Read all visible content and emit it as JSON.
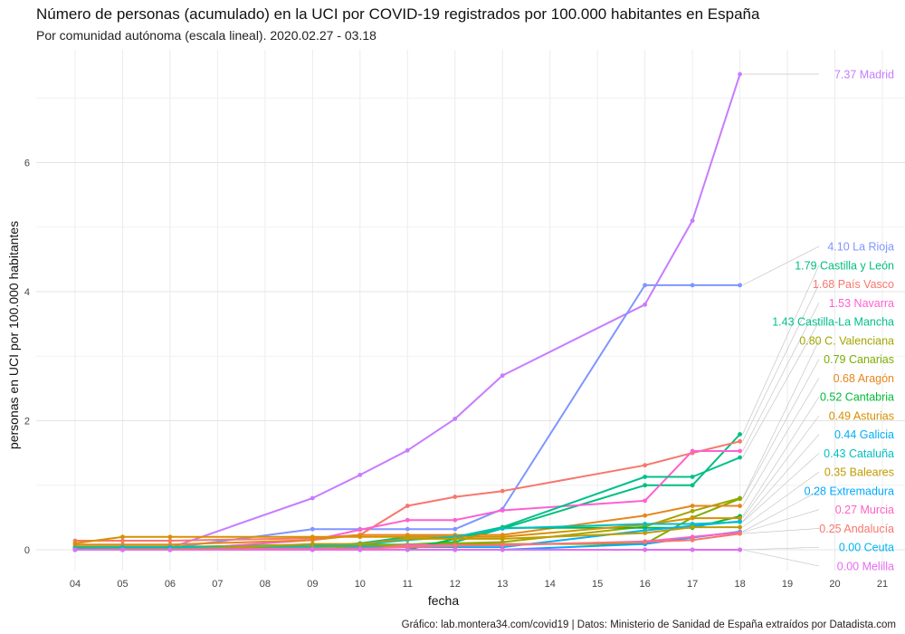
{
  "chart_data": {
    "type": "line",
    "title": "Número de personas (acumulado) en la UCI por COVID-19 registrados por 100.000 habitantes en España",
    "subtitle": "Por comunidad autónoma (escala lineal). 2020.02.27 - 03.18",
    "caption": "Gráfico: lab.montera34.com/covid19 | Datos: Ministerio de Sanidad de España extraídos por Datadista.com",
    "xlabel": "fecha",
    "ylabel": "personas en UCI por 100.000 habitantes",
    "x_ticks": [
      "04",
      "05",
      "06",
      "07",
      "08",
      "09",
      "10",
      "11",
      "12",
      "13",
      "14",
      "15",
      "16",
      "17",
      "18",
      "19",
      "20",
      "21"
    ],
    "xlim": [
      4,
      21
    ],
    "y_ticks": [
      0,
      2,
      4,
      6
    ],
    "ylim": [
      -0.1,
      7.6
    ],
    "grid": true,
    "legend": "direct labels",
    "series": [
      {
        "name": "Madrid",
        "label": "7.37 Madrid",
        "color": "#c77cff",
        "x": [
          4,
          5,
          6,
          9,
          10,
          11,
          12,
          13,
          16,
          17,
          18
        ],
        "y": [
          0.0,
          0.02,
          0.03,
          0.8,
          1.16,
          1.54,
          2.03,
          2.7,
          3.8,
          5.1,
          7.37
        ]
      },
      {
        "name": "La Rioja",
        "label": "4.10 La Rioja",
        "color": "#7f96ff",
        "x": [
          4,
          5,
          6,
          9,
          10,
          11,
          12,
          13,
          16,
          17,
          18
        ],
        "y": [
          0.03,
          0.03,
          0.03,
          0.32,
          0.32,
          0.32,
          0.32,
          0.63,
          4.1,
          4.1,
          4.1
        ]
      },
      {
        "name": "Castilla y León",
        "label": "1.79 Castilla y León",
        "color": "#00bf7d",
        "x": [
          4,
          5,
          6,
          9,
          10,
          11,
          12,
          13,
          16,
          17,
          18
        ],
        "y": [
          0.04,
          0.04,
          0.04,
          0.08,
          0.08,
          0.08,
          0.12,
          0.33,
          1.0,
          1.0,
          1.79
        ]
      },
      {
        "name": "País Vasco",
        "label": "1.68 País Vasco",
        "color": "#f8766d",
        "x": [
          4,
          5,
          6,
          9,
          10,
          11,
          12,
          13,
          16,
          17,
          18
        ],
        "y": [
          0.14,
          0.14,
          0.14,
          0.18,
          0.23,
          0.68,
          0.82,
          0.91,
          1.31,
          1.5,
          1.68
        ]
      },
      {
        "name": "Navarra",
        "label": "1.53 Navarra",
        "color": "#fd61d1",
        "x": [
          4,
          5,
          6,
          9,
          10,
          11,
          12,
          13,
          16,
          17,
          18
        ],
        "y": [
          0.0,
          0.0,
          0.0,
          0.15,
          0.31,
          0.46,
          0.46,
          0.61,
          0.76,
          1.53,
          1.53
        ]
      },
      {
        "name": "Castilla-La Mancha",
        "label": "1.43 Castilla-La Mancha",
        "color": "#00c08b",
        "x": [
          4,
          5,
          6,
          9,
          10,
          11,
          12,
          13,
          16,
          17,
          18
        ],
        "y": [
          0.0,
          0.0,
          0.0,
          0.05,
          0.1,
          0.2,
          0.2,
          0.35,
          1.13,
          1.13,
          1.43
        ]
      },
      {
        "name": "C. Valenciana",
        "label": "0.80 C. Valenciana",
        "color": "#a3a500",
        "x": [
          4,
          5,
          6,
          9,
          10,
          11,
          12,
          13,
          16,
          17,
          18
        ],
        "y": [
          0.02,
          0.02,
          0.02,
          0.04,
          0.06,
          0.08,
          0.1,
          0.12,
          0.36,
          0.6,
          0.8
        ]
      },
      {
        "name": "Canarias",
        "label": "0.79 Canarias",
        "color": "#7cae00",
        "x": [
          4,
          5,
          6,
          9,
          10,
          11,
          12,
          13,
          16,
          17,
          18
        ],
        "y": [
          0.05,
          0.05,
          0.05,
          0.05,
          0.05,
          0.05,
          0.09,
          0.09,
          0.09,
          0.5,
          0.79
        ]
      },
      {
        "name": "Aragón",
        "label": "0.68 Aragón",
        "color": "#e7861b",
        "x": [
          4,
          5,
          6,
          9,
          10,
          11,
          12,
          13,
          16,
          17,
          18
        ],
        "y": [
          0.08,
          0.08,
          0.08,
          0.15,
          0.23,
          0.23,
          0.23,
          0.23,
          0.53,
          0.68,
          0.68
        ]
      },
      {
        "name": "Cantabria",
        "label": "0.52 Cantabria",
        "color": "#00ba38",
        "x": [
          4,
          5,
          6,
          9,
          10,
          11,
          12,
          13,
          16,
          17,
          18
        ],
        "y": [
          0.0,
          0.0,
          0.0,
          0.0,
          0.0,
          0.0,
          0.17,
          0.34,
          0.34,
          0.34,
          0.52
        ]
      },
      {
        "name": "Asturias",
        "label": "0.49 Asturias",
        "color": "#d89000",
        "x": [
          4,
          5,
          6,
          9,
          10,
          11,
          12,
          13,
          16,
          17,
          18
        ],
        "y": [
          0.1,
          0.2,
          0.2,
          0.2,
          0.2,
          0.2,
          0.2,
          0.2,
          0.39,
          0.49,
          0.49
        ]
      },
      {
        "name": "Galicia",
        "label": "0.44 Galicia",
        "color": "#00b0f6",
        "x": [
          4,
          5,
          6,
          9,
          10,
          11,
          12,
          13,
          16,
          17,
          18
        ],
        "y": [
          0.0,
          0.0,
          0.0,
          0.0,
          0.04,
          0.04,
          0.04,
          0.04,
          0.3,
          0.37,
          0.44
        ]
      },
      {
        "name": "Cataluña",
        "label": "0.43 Cataluña",
        "color": "#00bfc4",
        "x": [
          4,
          5,
          6,
          9,
          10,
          11,
          12,
          13,
          16,
          17,
          18
        ],
        "y": [
          0.03,
          0.04,
          0.04,
          0.05,
          0.08,
          0.15,
          0.2,
          0.33,
          0.4,
          0.4,
          0.43
        ]
      },
      {
        "name": "Baleares",
        "label": "0.35 Baleares",
        "color": "#c09b00",
        "x": [
          4,
          5,
          6,
          9,
          10,
          11,
          12,
          13,
          16,
          17,
          18
        ],
        "y": [
          0.0,
          0.0,
          0.0,
          0.09,
          0.09,
          0.17,
          0.17,
          0.17,
          0.26,
          0.35,
          0.35
        ]
      },
      {
        "name": "Extremadura",
        "label": "0.28 Extremadura",
        "color": "#00a9ff",
        "x": [
          4,
          5,
          6,
          9,
          10,
          11,
          12,
          13,
          16,
          17,
          18
        ],
        "y": [
          0.0,
          0.0,
          0.0,
          0.0,
          0.0,
          0.0,
          0.0,
          0.0,
          0.09,
          0.19,
          0.28
        ]
      },
      {
        "name": "Murcia",
        "label": "0.27 Murcia",
        "color": "#ff61c3",
        "x": [
          4,
          5,
          6,
          9,
          10,
          11,
          12,
          13,
          16,
          17,
          18
        ],
        "y": [
          0.0,
          0.0,
          0.0,
          0.0,
          0.0,
          0.07,
          0.07,
          0.07,
          0.13,
          0.2,
          0.27
        ]
      },
      {
        "name": "Andalucía",
        "label": "0.25 Andalucía",
        "color": "#f8766d",
        "x": [
          4,
          5,
          6,
          9,
          10,
          11,
          12,
          13,
          16,
          17,
          18
        ],
        "y": [
          0.0,
          0.0,
          0.0,
          0.02,
          0.02,
          0.04,
          0.06,
          0.08,
          0.12,
          0.15,
          0.25
        ]
      },
      {
        "name": "Ceuta",
        "label": "0.00 Ceuta",
        "color": "#00b4ef",
        "x": [
          4,
          5,
          6,
          9,
          10,
          11,
          12,
          13,
          16,
          17,
          18
        ],
        "y": [
          0.0,
          0.0,
          0.0,
          0.0,
          0.0,
          0.0,
          0.0,
          0.0,
          0.0,
          0.0,
          0.0
        ]
      },
      {
        "name": "Melilla",
        "label": "0.00 Melilla",
        "color": "#e76bf3",
        "x": [
          4,
          5,
          6,
          9,
          10,
          11,
          12,
          13,
          16,
          17,
          18
        ],
        "y": [
          0.0,
          0.0,
          0.0,
          0.0,
          0.0,
          0.0,
          0.0,
          0.0,
          0.0,
          0.0,
          0.0
        ]
      }
    ]
  }
}
